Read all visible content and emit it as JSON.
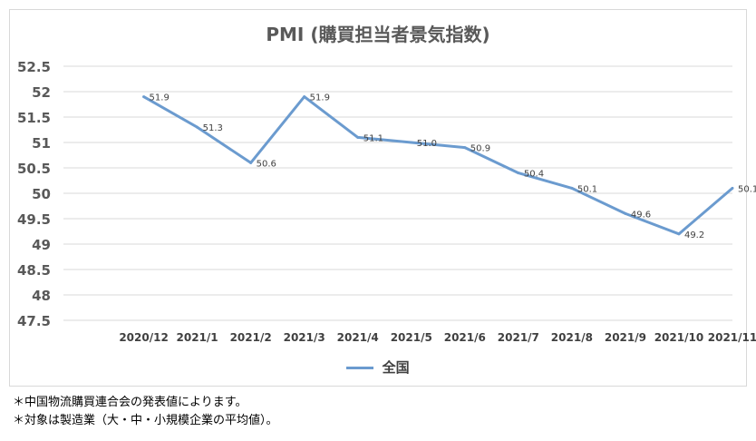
{
  "chart_data": {
    "type": "line",
    "title": "PMI (購買担当者景気指数)",
    "categories": [
      "2020/12",
      "2021/1",
      "2021/2",
      "2021/3",
      "2021/4",
      "2021/5",
      "2021/6",
      "2021/7",
      "2021/8",
      "2021/9",
      "2021/10",
      "2021/11"
    ],
    "series": [
      {
        "name": "全国",
        "values": [
          51.9,
          51.3,
          50.6,
          51.9,
          51.1,
          51.0,
          50.9,
          50.4,
          50.1,
          49.6,
          49.2,
          50.1
        ],
        "labels": [
          "51.9",
          "51.3",
          "50.6",
          "51.9",
          "51.1",
          "51.0",
          "50.9",
          "50.4",
          "50.1",
          "49.6",
          "49.2",
          "50.1"
        ],
        "color": "#6b9bcf"
      }
    ],
    "ylim": [
      47.5,
      52.5
    ],
    "yticks": [
      "52.5",
      "52",
      "51.5",
      "51",
      "50.5",
      "50",
      "49.5",
      "49",
      "48.5",
      "48",
      "47.5"
    ],
    "grid": true,
    "legend_position": "bottom"
  },
  "footnotes": [
    "＊中国物流購買連合会の発表値によります。",
    "＊対象は製造業（大・中・小規模企業の平均値）。"
  ]
}
